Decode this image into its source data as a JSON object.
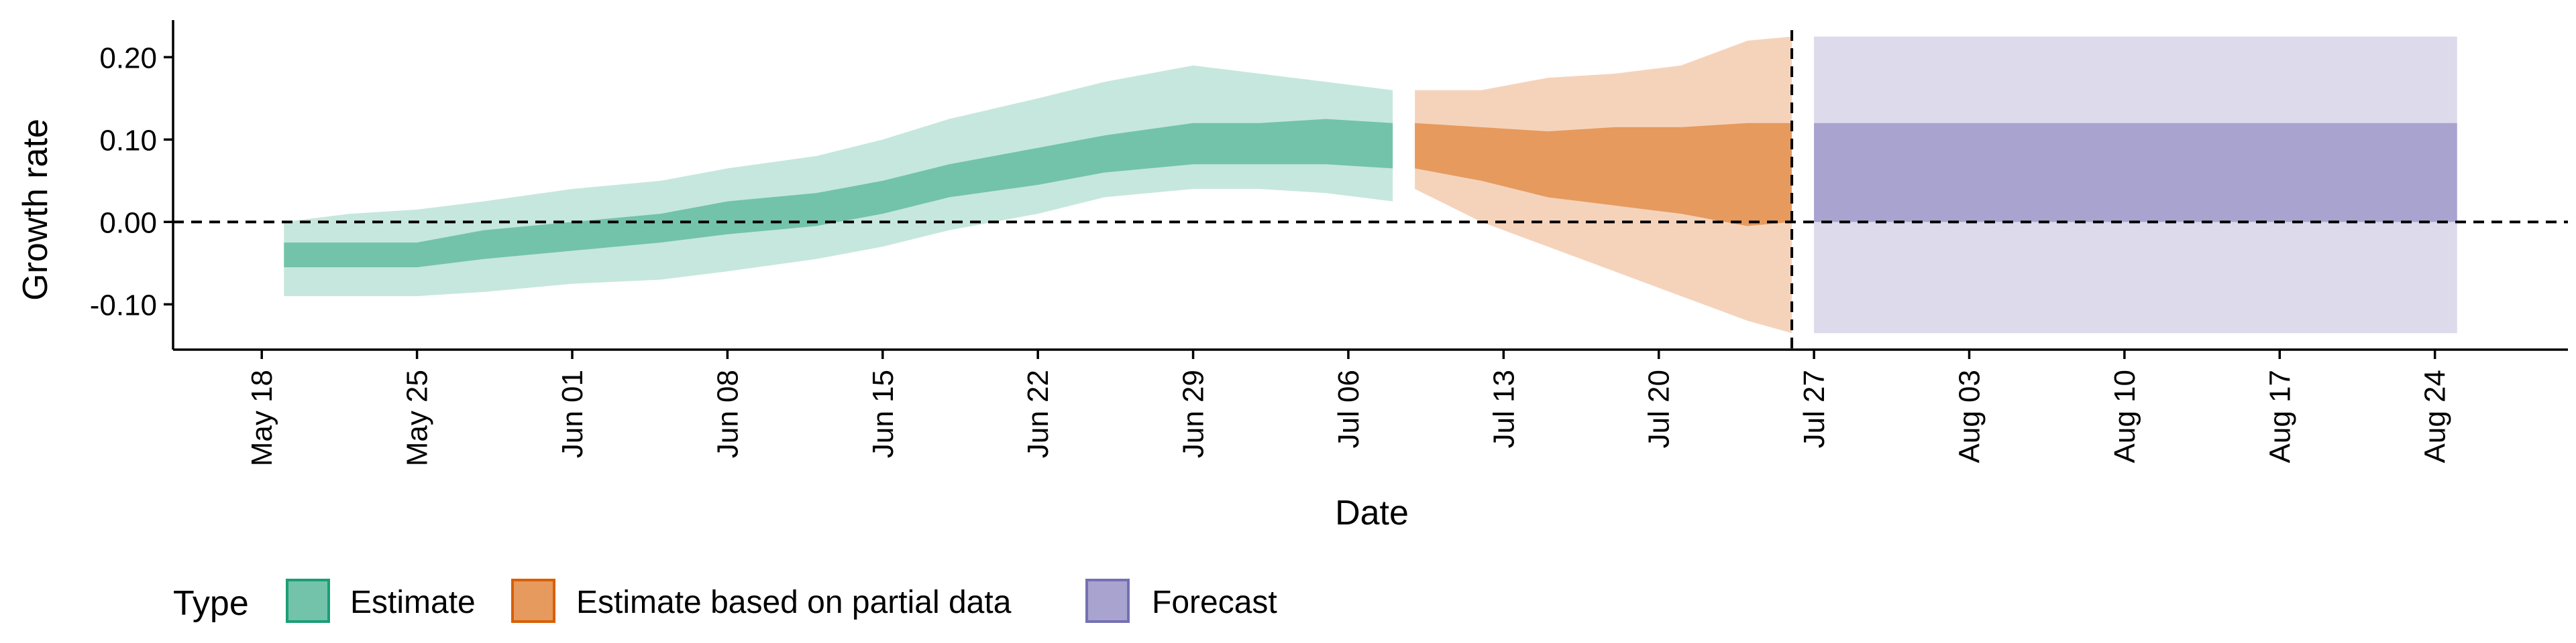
{
  "chart_data": {
    "type": "area",
    "title": "",
    "xlabel": "Date",
    "ylabel": "Growth rate",
    "x_type": "date",
    "xlim": [
      "2020-05-14",
      "2020-08-30"
    ],
    "ylim": [
      -0.155,
      0.245
    ],
    "x_ticks": [
      "2020-05-18",
      "2020-05-25",
      "2020-06-01",
      "2020-06-08",
      "2020-06-15",
      "2020-06-22",
      "2020-06-29",
      "2020-07-06",
      "2020-07-13",
      "2020-07-20",
      "2020-07-27",
      "2020-08-03",
      "2020-08-10",
      "2020-08-17",
      "2020-08-24"
    ],
    "x_tick_labels": [
      "May 18",
      "May 25",
      "Jun 01",
      "Jun 08",
      "Jun 15",
      "Jun 22",
      "Jun 29",
      "Jul 06",
      "Jul 13",
      "Jul 20",
      "Jul 27",
      "Aug 03",
      "Aug 10",
      "Aug 17",
      "Aug 24"
    ],
    "y_ticks": [
      -0.1,
      0.0,
      0.1,
      0.2
    ],
    "y_tick_labels": [
      "-0.10",
      "0.00",
      "0.10",
      "0.20"
    ],
    "grid": false,
    "hline": 0.0,
    "vline": "2020-07-26",
    "legend": {
      "title": "Type",
      "position": "bottom-left",
      "items": [
        "Estimate",
        "Estimate based on partial data",
        "Forecast"
      ]
    },
    "series": [
      {
        "name": "Estimate",
        "color": "#1b9e77",
        "outer_color": "#c6e7dd",
        "inner_color": "#72c3aa",
        "points": [
          {
            "x": "2020-05-19",
            "lo90": -0.09,
            "lo50": -0.055,
            "hi50": -0.025,
            "hi90": 0.0
          },
          {
            "x": "2020-05-22",
            "lo90": -0.09,
            "lo50": -0.055,
            "hi50": -0.025,
            "hi90": 0.01
          },
          {
            "x": "2020-05-25",
            "lo90": -0.09,
            "lo50": -0.055,
            "hi50": -0.025,
            "hi90": 0.015
          },
          {
            "x": "2020-05-28",
            "lo90": -0.085,
            "lo50": -0.045,
            "hi50": -0.01,
            "hi90": 0.025
          },
          {
            "x": "2020-06-01",
            "lo90": -0.075,
            "lo50": -0.035,
            "hi50": 0.0,
            "hi90": 0.04
          },
          {
            "x": "2020-06-05",
            "lo90": -0.07,
            "lo50": -0.025,
            "hi50": 0.01,
            "hi90": 0.05
          },
          {
            "x": "2020-06-08",
            "lo90": -0.06,
            "lo50": -0.015,
            "hi50": 0.025,
            "hi90": 0.065
          },
          {
            "x": "2020-06-12",
            "lo90": -0.045,
            "lo50": -0.005,
            "hi50": 0.035,
            "hi90": 0.08
          },
          {
            "x": "2020-06-15",
            "lo90": -0.03,
            "lo50": 0.01,
            "hi50": 0.05,
            "hi90": 0.1
          },
          {
            "x": "2020-06-18",
            "lo90": -0.01,
            "lo50": 0.03,
            "hi50": 0.07,
            "hi90": 0.125
          },
          {
            "x": "2020-06-22",
            "lo90": 0.01,
            "lo50": 0.045,
            "hi50": 0.09,
            "hi90": 0.15
          },
          {
            "x": "2020-06-25",
            "lo90": 0.03,
            "lo50": 0.06,
            "hi50": 0.105,
            "hi90": 0.17
          },
          {
            "x": "2020-06-29",
            "lo90": 0.04,
            "lo50": 0.07,
            "hi50": 0.12,
            "hi90": 0.19
          },
          {
            "x": "2020-07-02",
            "lo90": 0.04,
            "lo50": 0.07,
            "hi50": 0.12,
            "hi90": 0.18
          },
          {
            "x": "2020-07-05",
            "lo90": 0.035,
            "lo50": 0.07,
            "hi50": 0.125,
            "hi90": 0.17
          },
          {
            "x": "2020-07-08",
            "lo90": 0.025,
            "lo50": 0.065,
            "hi50": 0.12,
            "hi90": 0.16
          }
        ]
      },
      {
        "name": "Estimate based on partial data",
        "color": "#d95f02",
        "outer_color": "#f5d3bb",
        "inner_color": "#e69a5e",
        "points": [
          {
            "x": "2020-07-09",
            "lo90": 0.04,
            "lo50": 0.065,
            "hi50": 0.12,
            "hi90": 0.16
          },
          {
            "x": "2020-07-12",
            "lo90": 0.0,
            "lo50": 0.05,
            "hi50": 0.115,
            "hi90": 0.16
          },
          {
            "x": "2020-07-15",
            "lo90": -0.03,
            "lo50": 0.03,
            "hi50": 0.11,
            "hi90": 0.175
          },
          {
            "x": "2020-07-18",
            "lo90": -0.06,
            "lo50": 0.02,
            "hi50": 0.115,
            "hi90": 0.18
          },
          {
            "x": "2020-07-21",
            "lo90": -0.09,
            "lo50": 0.01,
            "hi50": 0.115,
            "hi90": 0.19
          },
          {
            "x": "2020-07-24",
            "lo90": -0.12,
            "lo50": -0.005,
            "hi50": 0.12,
            "hi90": 0.22
          },
          {
            "x": "2020-07-26",
            "lo90": -0.135,
            "lo50": 0.0,
            "hi50": 0.12,
            "hi90": 0.225
          }
        ]
      },
      {
        "name": "Forecast",
        "color": "#7570b3",
        "outer_color": "#dcdaeb",
        "inner_color": "#a8a4cf",
        "points": [
          {
            "x": "2020-07-27",
            "lo90": -0.135,
            "lo50": 0.0,
            "hi50": 0.12,
            "hi90": 0.225
          },
          {
            "x": "2020-08-25",
            "lo90": -0.135,
            "lo50": 0.0,
            "hi50": 0.12,
            "hi90": 0.225
          }
        ]
      }
    ]
  }
}
